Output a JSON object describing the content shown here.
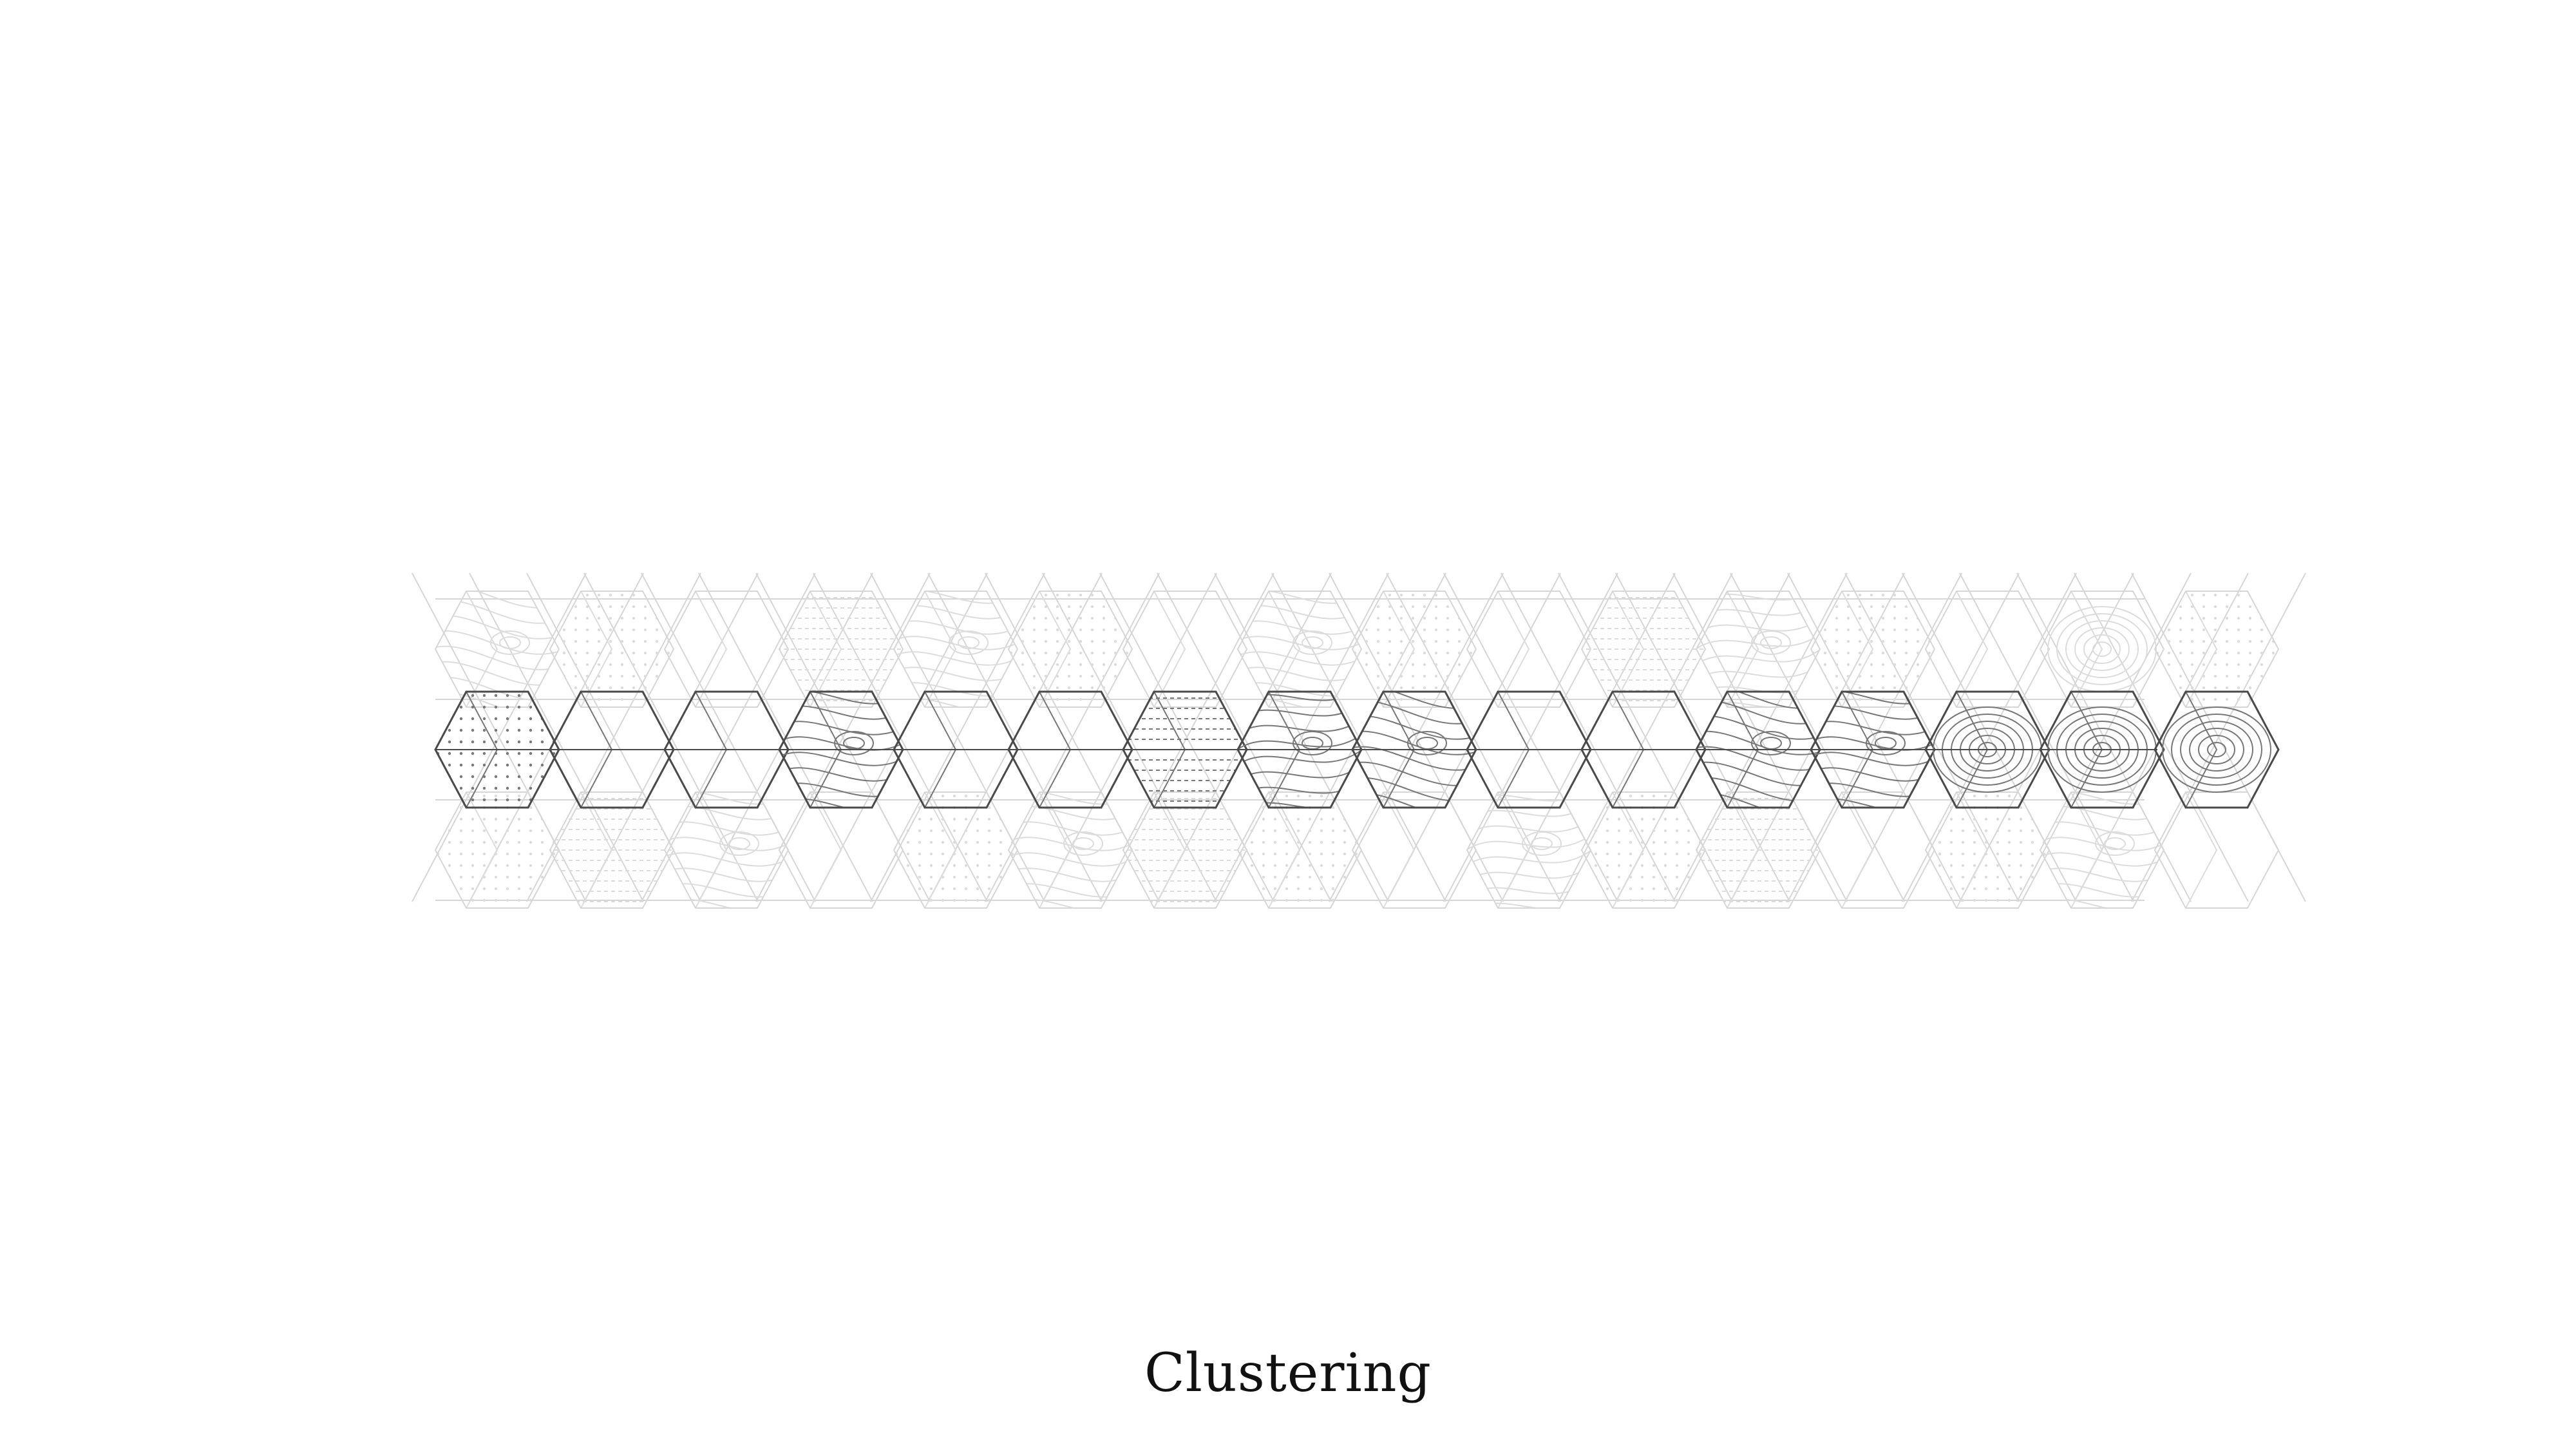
{
  "caption": "Clustering",
  "colors": {
    "background": "#ffffff",
    "grid_faint": "#d6d6d6",
    "grid_dark": "#4a4a4a",
    "pattern_faint": "#dcdcdc",
    "pattern_dark": "#777777",
    "caption": "#111111"
  },
  "pattern_types": [
    "blank",
    "dots",
    "hlines",
    "contour",
    "ripple"
  ],
  "grid": {
    "columns": 16,
    "rows": 3,
    "highlighted_row": 1
  },
  "hexes": [
    {
      "type": "contour"
    },
    {
      "type": "dots"
    },
    {
      "type": "blank"
    },
    {
      "type": "hlines"
    },
    {
      "type": "contour"
    },
    {
      "type": "dots"
    },
    {
      "type": "blank"
    },
    {
      "type": "contour"
    },
    {
      "type": "dots"
    },
    {
      "type": "blank"
    },
    {
      "type": "hlines"
    },
    {
      "type": "contour"
    },
    {
      "type": "dots"
    },
    {
      "type": "blank"
    },
    {
      "type": "ripple"
    },
    {
      "type": "dots"
    },
    {
      "type": "dots"
    },
    {
      "type": "blank"
    },
    {
      "type": "blank"
    },
    {
      "type": "contour"
    },
    {
      "type": "blank"
    },
    {
      "type": "blank"
    },
    {
      "type": "hlines"
    },
    {
      "type": "contour"
    },
    {
      "type": "contour"
    },
    {
      "type": "blank"
    },
    {
      "type": "blank"
    },
    {
      "type": "contour"
    },
    {
      "type": "contour"
    },
    {
      "type": "ripple"
    },
    {
      "type": "ripple"
    },
    {
      "type": "ripple"
    },
    {
      "type": "dots"
    },
    {
      "type": "hlines"
    },
    {
      "type": "contour"
    },
    {
      "type": "blank"
    },
    {
      "type": "dots"
    },
    {
      "type": "contour"
    },
    {
      "type": "hlines"
    },
    {
      "type": "dots"
    },
    {
      "type": "blank"
    },
    {
      "type": "contour"
    },
    {
      "type": "dots"
    },
    {
      "type": "hlines"
    },
    {
      "type": "blank"
    },
    {
      "type": "dots"
    },
    {
      "type": "contour"
    },
    {
      "type": "blank"
    }
  ]
}
